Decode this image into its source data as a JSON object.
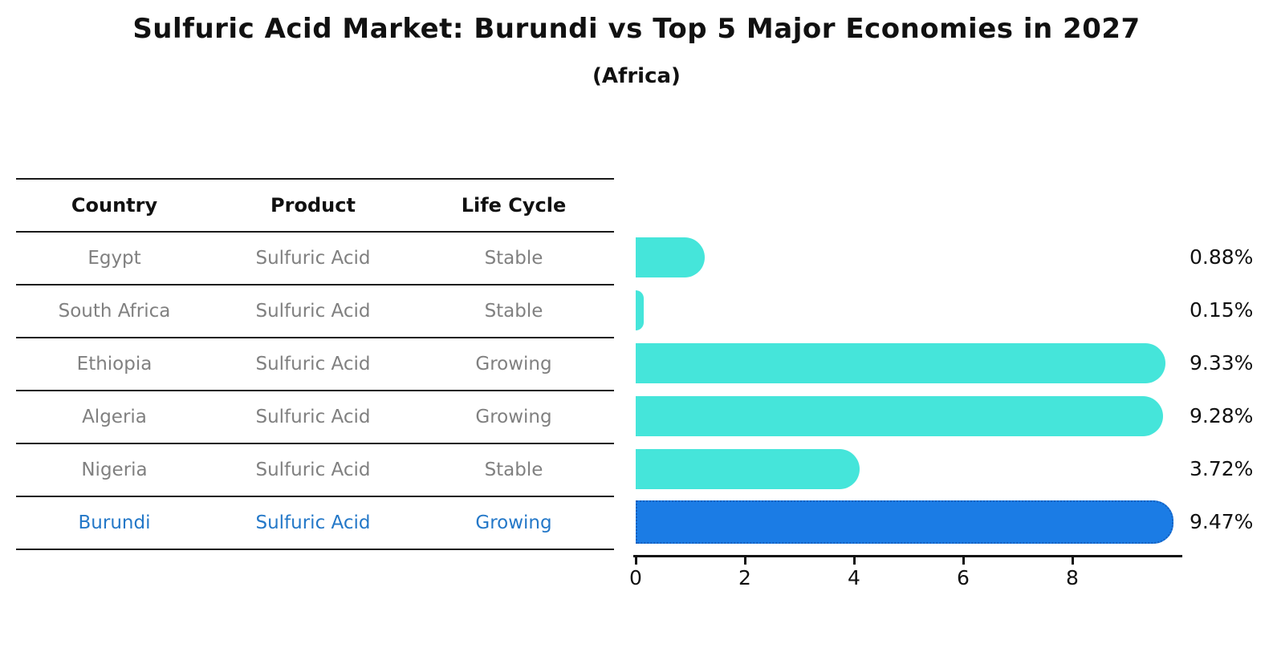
{
  "title": "Sulfuric Acid Market: Burundi vs Top 5 Major Economies in 2027",
  "subtitle": "(Africa)",
  "colors": {
    "bar": "#45e5da",
    "highlight_bar": "#1b7ce5",
    "highlight_border": "#155fbe",
    "highlight_text": "#2478c8",
    "row_text": "#808080",
    "header_text": "#111111",
    "axis": "#111111"
  },
  "table": {
    "headers": [
      "Country",
      "Product",
      "Life Cycle"
    ],
    "rows": [
      {
        "country": "Egypt",
        "product": "Sulfuric Acid",
        "life_cycle": "Stable",
        "highlighted": false
      },
      {
        "country": "South Africa",
        "product": "Sulfuric Acid",
        "life_cycle": "Stable",
        "highlighted": false
      },
      {
        "country": "Ethiopia",
        "product": "Sulfuric Acid",
        "life_cycle": "Growing",
        "highlighted": false
      },
      {
        "country": "Algeria",
        "product": "Sulfuric Acid",
        "life_cycle": "Growing",
        "highlighted": false
      },
      {
        "country": "Nigeria",
        "product": "Sulfuric Acid",
        "life_cycle": "Stable",
        "highlighted": false
      },
      {
        "country": "Burundi",
        "product": "Sulfuric Acid",
        "life_cycle": "Growing",
        "highlighted": true
      }
    ]
  },
  "chart_data": {
    "type": "bar",
    "orientation": "horizontal",
    "title": "Sulfuric Acid Market: Burundi vs Top 5 Major Economies in 2027",
    "subtitle": "(Africa)",
    "categories": [
      "Egypt",
      "South Africa",
      "Ethiopia",
      "Algeria",
      "Nigeria",
      "Burundi"
    ],
    "values": [
      0.88,
      0.15,
      9.33,
      9.28,
      3.72,
      9.47
    ],
    "value_labels": [
      "0.88%",
      "0.15%",
      "9.33%",
      "9.28%",
      "3.72%",
      "9.47%"
    ],
    "unit": "%",
    "xlabel": "",
    "ylabel": "",
    "xlim": [
      0,
      10
    ],
    "x_ticks": [
      0,
      2,
      4,
      6,
      8
    ],
    "grid": false,
    "legend": "none",
    "highlight_category": "Burundi"
  }
}
